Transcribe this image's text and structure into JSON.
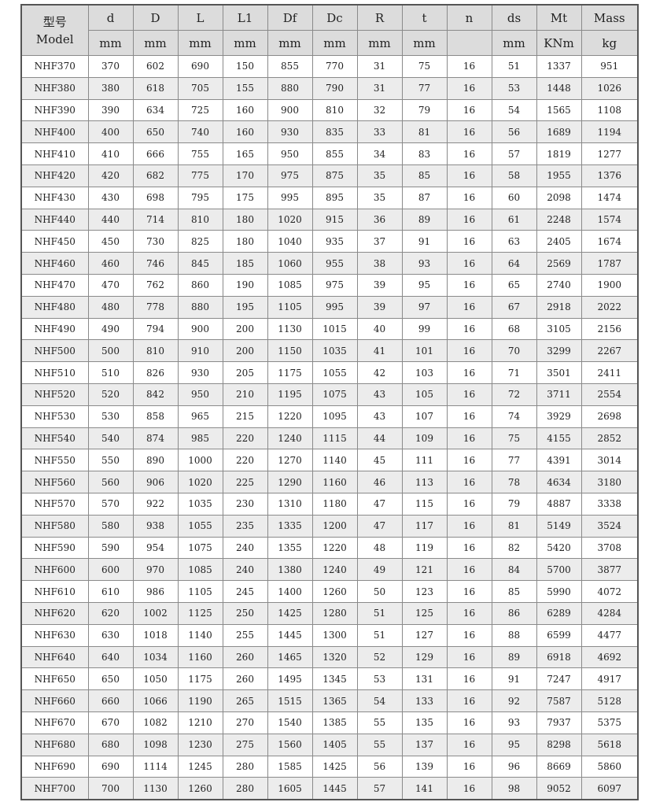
{
  "header": {
    "model_label_kr": "型号",
    "model_label_en": "Model",
    "columns": [
      "d",
      "D",
      "L",
      "L1",
      "Df",
      "Dc",
      "R",
      "t",
      "n",
      "ds",
      "Mt",
      "Mass"
    ],
    "units": [
      "mm",
      "mm",
      "mm",
      "mm",
      "mm",
      "mm",
      "mm",
      "mm",
      "",
      "mm",
      "KNm",
      "kg"
    ]
  },
  "rows": [
    [
      "NHF370",
      "370",
      "602",
      "690",
      "150",
      "855",
      "770",
      "31",
      "75",
      "16",
      "51",
      "1337",
      "951"
    ],
    [
      "NHF380",
      "380",
      "618",
      "705",
      "155",
      "880",
      "790",
      "31",
      "77",
      "16",
      "53",
      "1448",
      "1026"
    ],
    [
      "NHF390",
      "390",
      "634",
      "725",
      "160",
      "900",
      "810",
      "32",
      "79",
      "16",
      "54",
      "1565",
      "1108"
    ],
    [
      "NHF400",
      "400",
      "650",
      "740",
      "160",
      "930",
      "835",
      "33",
      "81",
      "16",
      "56",
      "1689",
      "1194"
    ],
    [
      "NHF410",
      "410",
      "666",
      "755",
      "165",
      "950",
      "855",
      "34",
      "83",
      "16",
      "57",
      "1819",
      "1277"
    ],
    [
      "NHF420",
      "420",
      "682",
      "775",
      "170",
      "975",
      "875",
      "35",
      "85",
      "16",
      "58",
      "1955",
      "1376"
    ],
    [
      "NHF430",
      "430",
      "698",
      "795",
      "175",
      "995",
      "895",
      "35",
      "87",
      "16",
      "60",
      "2098",
      "1474"
    ],
    [
      "NHF440",
      "440",
      "714",
      "810",
      "180",
      "1020",
      "915",
      "36",
      "89",
      "16",
      "61",
      "2248",
      "1574"
    ],
    [
      "NHF450",
      "450",
      "730",
      "825",
      "180",
      "1040",
      "935",
      "37",
      "91",
      "16",
      "63",
      "2405",
      "1674"
    ],
    [
      "NHF460",
      "460",
      "746",
      "845",
      "185",
      "1060",
      "955",
      "38",
      "93",
      "16",
      "64",
      "2569",
      "1787"
    ],
    [
      "NHF470",
      "470",
      "762",
      "860",
      "190",
      "1085",
      "975",
      "39",
      "95",
      "16",
      "65",
      "2740",
      "1900"
    ],
    [
      "NHF480",
      "480",
      "778",
      "880",
      "195",
      "1105",
      "995",
      "39",
      "97",
      "16",
      "67",
      "2918",
      "2022"
    ],
    [
      "NHF490",
      "490",
      "794",
      "900",
      "200",
      "1130",
      "1015",
      "40",
      "99",
      "16",
      "68",
      "3105",
      "2156"
    ],
    [
      "NHF500",
      "500",
      "810",
      "910",
      "200",
      "1150",
      "1035",
      "41",
      "101",
      "16",
      "70",
      "3299",
      "2267"
    ],
    [
      "NHF510",
      "510",
      "826",
      "930",
      "205",
      "1175",
      "1055",
      "42",
      "103",
      "16",
      "71",
      "3501",
      "2411"
    ],
    [
      "NHF520",
      "520",
      "842",
      "950",
      "210",
      "1195",
      "1075",
      "43",
      "105",
      "16",
      "72",
      "3711",
      "2554"
    ],
    [
      "NHF530",
      "530",
      "858",
      "965",
      "215",
      "1220",
      "1095",
      "43",
      "107",
      "16",
      "74",
      "3929",
      "2698"
    ],
    [
      "NHF540",
      "540",
      "874",
      "985",
      "220",
      "1240",
      "1115",
      "44",
      "109",
      "16",
      "75",
      "4155",
      "2852"
    ],
    [
      "NHF550",
      "550",
      "890",
      "1000",
      "220",
      "1270",
      "1140",
      "45",
      "111",
      "16",
      "77",
      "4391",
      "3014"
    ],
    [
      "NHF560",
      "560",
      "906",
      "1020",
      "225",
      "1290",
      "1160",
      "46",
      "113",
      "16",
      "78",
      "4634",
      "3180"
    ],
    [
      "NHF570",
      "570",
      "922",
      "1035",
      "230",
      "1310",
      "1180",
      "47",
      "115",
      "16",
      "79",
      "4887",
      "3338"
    ],
    [
      "NHF580",
      "580",
      "938",
      "1055",
      "235",
      "1335",
      "1200",
      "47",
      "117",
      "16",
      "81",
      "5149",
      "3524"
    ],
    [
      "NHF590",
      "590",
      "954",
      "1075",
      "240",
      "1355",
      "1220",
      "48",
      "119",
      "16",
      "82",
      "5420",
      "3708"
    ],
    [
      "NHF600",
      "600",
      "970",
      "1085",
      "240",
      "1380",
      "1240",
      "49",
      "121",
      "16",
      "84",
      "5700",
      "3877"
    ],
    [
      "NHF610",
      "610",
      "986",
      "1105",
      "245",
      "1400",
      "1260",
      "50",
      "123",
      "16",
      "85",
      "5990",
      "4072"
    ],
    [
      "NHF620",
      "620",
      "1002",
      "1125",
      "250",
      "1425",
      "1280",
      "51",
      "125",
      "16",
      "86",
      "6289",
      "4284"
    ],
    [
      "NHF630",
      "630",
      "1018",
      "1140",
      "255",
      "1445",
      "1300",
      "51",
      "127",
      "16",
      "88",
      "6599",
      "4477"
    ],
    [
      "NHF640",
      "640",
      "1034",
      "1160",
      "260",
      "1465",
      "1320",
      "52",
      "129",
      "16",
      "89",
      "6918",
      "4692"
    ],
    [
      "NHF650",
      "650",
      "1050",
      "1175",
      "260",
      "1495",
      "1345",
      "53",
      "131",
      "16",
      "91",
      "7247",
      "4917"
    ],
    [
      "NHF660",
      "660",
      "1066",
      "1190",
      "265",
      "1515",
      "1365",
      "54",
      "133",
      "16",
      "92",
      "7587",
      "5128"
    ],
    [
      "NHF670",
      "670",
      "1082",
      "1210",
      "270",
      "1540",
      "1385",
      "55",
      "135",
      "16",
      "93",
      "7937",
      "5375"
    ],
    [
      "NHF680",
      "680",
      "1098",
      "1230",
      "275",
      "1560",
      "1405",
      "55",
      "137",
      "16",
      "95",
      "8298",
      "5618"
    ],
    [
      "NHF690",
      "690",
      "1114",
      "1245",
      "280",
      "1585",
      "1425",
      "56",
      "139",
      "16",
      "96",
      "8669",
      "5860"
    ],
    [
      "NHF700",
      "700",
      "1130",
      "1260",
      "280",
      "1605",
      "1445",
      "57",
      "141",
      "16",
      "98",
      "9052",
      "6097"
    ]
  ]
}
